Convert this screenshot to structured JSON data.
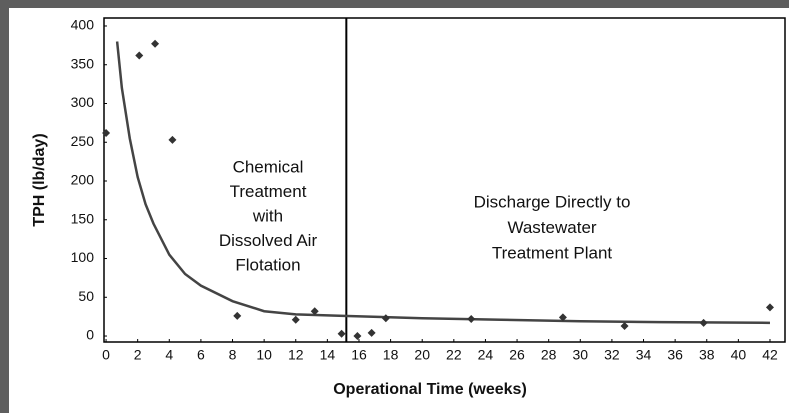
{
  "chart_data": {
    "type": "scatter",
    "xlabel": "Operational Time (weeks)",
    "ylabel": "TPH (lb/day)",
    "xlim": [
      -0.13,
      42.95
    ],
    "ylim": [
      -7.7,
      410.3
    ],
    "xticks": [
      0,
      2,
      4,
      6,
      8,
      10,
      12,
      14,
      16,
      18,
      20,
      22,
      24,
      26,
      28,
      30,
      32,
      34,
      36,
      38,
      40,
      42
    ],
    "yticks": [
      0,
      50,
      100,
      150,
      200,
      250,
      300,
      350,
      400
    ],
    "color": "#333333",
    "series": [
      {
        "x": [
          0,
          2.1,
          3.1,
          4.2,
          8.3,
          12,
          13.2,
          14.9,
          15.9,
          16.8,
          17.7,
          23.1,
          28.9,
          32.8,
          37.8,
          42
        ],
        "values": [
          262,
          362,
          377,
          253,
          26,
          21,
          32,
          3,
          0,
          4,
          23,
          22,
          24,
          13,
          17,
          37
        ]
      }
    ],
    "trend": {
      "x": [
        0.7,
        1,
        1.5,
        2,
        2.5,
        3,
        4,
        5,
        6,
        8,
        10,
        12,
        15,
        20,
        25,
        30,
        35,
        42
      ],
      "values": [
        380,
        320,
        255,
        205,
        170,
        145,
        105,
        80,
        65,
        45,
        32,
        28,
        26,
        23,
        21,
        19,
        18,
        17
      ]
    },
    "divider_x": 15.2,
    "annotations": [
      {
        "lines": [
          "Chemical",
          "Treatment",
          "with",
          "Dissolved Air",
          "Flotation"
        ]
      },
      {
        "lines": [
          "Discharge Directly to",
          "Wastewater",
          "Treatment Plant"
        ]
      }
    ]
  }
}
